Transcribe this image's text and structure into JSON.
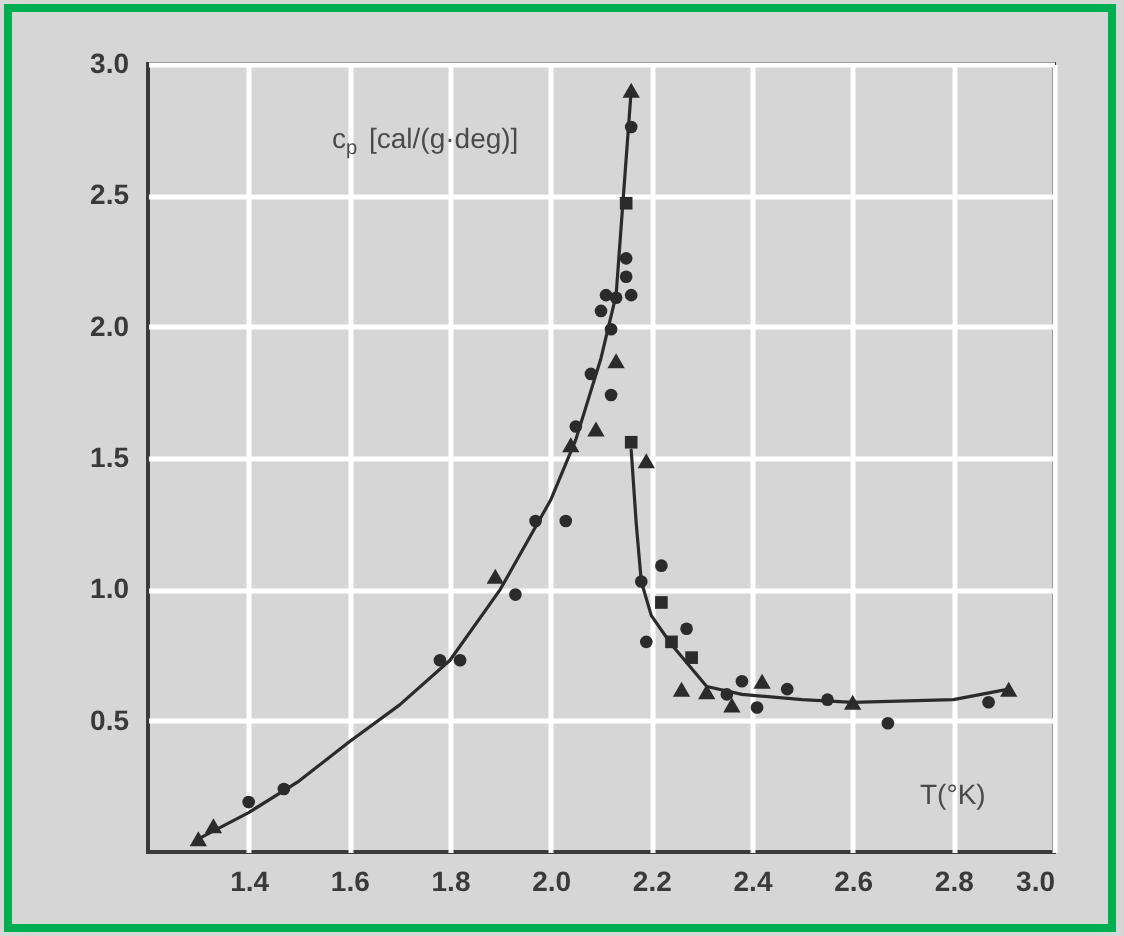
{
  "chart_data": {
    "type": "scatter",
    "xlabel": "T(°K)",
    "ylabel": "c$_{p}$ [cal/(g·deg)]",
    "xlim": [
      1.2,
      3.0
    ],
    "ylim": [
      0,
      3.0
    ],
    "xticks": [
      1.4,
      1.6,
      1.8,
      {
        "value": 2,
        "label": "2.0"
      },
      2.2,
      2.4,
      2.6,
      2.8,
      {
        "value": 3,
        "label": "3.0"
      }
    ],
    "yticks": [
      0.5,
      {
        "value": 1,
        "label": "1.0"
      },
      1.5,
      {
        "value": 2,
        "label": "2.0"
      },
      2.5,
      {
        "value": 3,
        "label": "3.0"
      }
    ],
    "grid": true,
    "series": [
      {
        "type": "line",
        "marker": "none",
        "color": "#2b2b2b",
        "x": [
          1.3,
          1.4,
          1.5,
          1.6,
          1.7,
          1.8,
          1.9,
          2.0,
          2.05,
          2.1,
          2.13,
          2.16
        ],
        "values": [
          0.05,
          0.15,
          0.27,
          0.42,
          0.56,
          0.73,
          1.0,
          1.34,
          1.57,
          1.88,
          2.12,
          2.9
        ]
      },
      {
        "type": "line",
        "marker": "none",
        "color": "#2b2b2b",
        "x": [
          2.16,
          2.17,
          2.18,
          2.2,
          2.24,
          2.31,
          2.38,
          2.5,
          2.6,
          2.8,
          2.91
        ],
        "values": [
          1.53,
          1.25,
          1.03,
          0.9,
          0.79,
          0.63,
          0.6,
          0.58,
          0.57,
          0.58,
          0.62
        ]
      },
      {
        "type": "scatter",
        "marker": "circle",
        "color": "#2b2b2b",
        "x": [
          1.4,
          1.47,
          1.78,
          1.82,
          1.93,
          1.97,
          2.03,
          2.05,
          2.08,
          2.1,
          2.11,
          2.12,
          2.12,
          2.13,
          2.15,
          2.15,
          2.16,
          2.16,
          2.18,
          2.19,
          2.22,
          2.27,
          2.35,
          2.38,
          2.41,
          2.47,
          2.55,
          2.67,
          2.87
        ],
        "values": [
          0.19,
          0.24,
          0.73,
          0.73,
          0.98,
          1.26,
          1.26,
          1.62,
          1.82,
          2.06,
          2.12,
          1.99,
          1.74,
          2.11,
          2.26,
          2.19,
          2.12,
          2.76,
          1.03,
          0.8,
          1.09,
          0.85,
          0.6,
          0.65,
          0.55,
          0.62,
          0.58,
          0.49,
          0.57
        ]
      },
      {
        "type": "scatter",
        "marker": "triangle",
        "color": "#2b2b2b",
        "x": [
          1.3,
          1.33,
          1.89,
          2.04,
          2.09,
          2.13,
          2.16,
          2.19,
          2.26,
          2.31,
          2.36,
          2.42,
          2.6,
          2.91
        ],
        "values": [
          0.05,
          0.1,
          1.05,
          1.55,
          1.61,
          1.87,
          2.9,
          1.49,
          0.62,
          0.61,
          0.56,
          0.65,
          0.57,
          0.62
        ]
      },
      {
        "type": "scatter",
        "marker": "square",
        "color": "#2b2b2b",
        "x": [
          2.15,
          2.16,
          2.22,
          2.24,
          2.28
        ],
        "values": [
          2.47,
          1.56,
          0.95,
          0.8,
          0.74
        ]
      }
    ]
  }
}
